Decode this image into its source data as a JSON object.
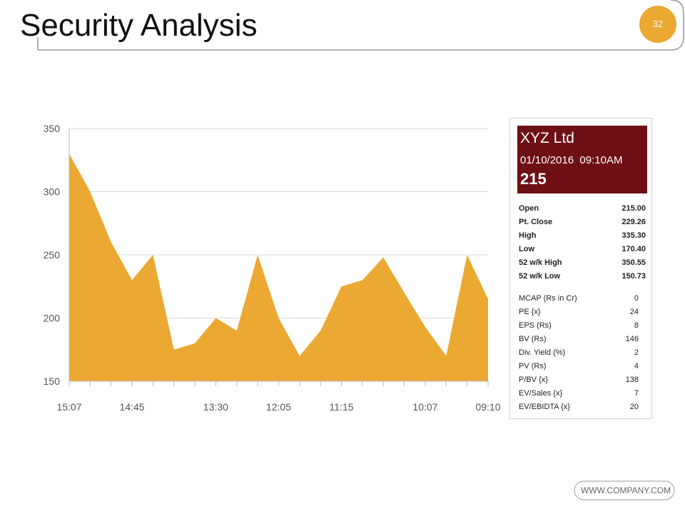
{
  "header": {
    "title": "Security Analysis",
    "page_number": "32"
  },
  "chart_data": {
    "type": "area",
    "categories": [
      "15:07",
      null,
      null,
      "14:45",
      null,
      null,
      null,
      "13:30",
      null,
      null,
      "12:05",
      null,
      null,
      "11:15",
      null,
      null,
      null,
      "10:07",
      null,
      null,
      "09:10"
    ],
    "values": [
      330,
      300,
      260,
      230,
      250,
      175,
      180,
      200,
      190,
      250,
      200,
      170,
      190,
      225,
      230,
      248,
      220,
      193,
      170,
      250,
      215
    ],
    "color": "#eba832",
    "ylim": [
      150,
      350
    ],
    "yticks": [
      150,
      200,
      250,
      300,
      350
    ],
    "grid": true
  },
  "panel": {
    "name": "XYZ Ltd",
    "datetime": "01/10/2016  09:10AM",
    "price": "215",
    "rows": [
      [
        "Open",
        "215.00"
      ],
      [
        "Pt. Close",
        "229.26"
      ],
      [
        "High",
        "335.30"
      ],
      [
        "Low",
        "170.40"
      ],
      [
        "52 w/k High",
        "350.55"
      ],
      [
        "52 w/k Low",
        "150.73"
      ]
    ],
    "ratios": [
      [
        "MCAP (Rs in Cr)",
        "0"
      ],
      [
        "PE {x}",
        "24"
      ],
      [
        "EPS (Rs)",
        "8"
      ],
      [
        "BV (Rs)",
        "146"
      ],
      [
        "Div. Yield (%)",
        "2"
      ],
      [
        "PV (Rs)",
        "4"
      ],
      [
        "P/BV {x}",
        "138"
      ],
      [
        "EV/Sales  {x}",
        "7"
      ],
      [
        "EV/EBIDTA {x}",
        "20"
      ]
    ]
  },
  "footer": {
    "website": "WWW.COMPANY.COM"
  }
}
